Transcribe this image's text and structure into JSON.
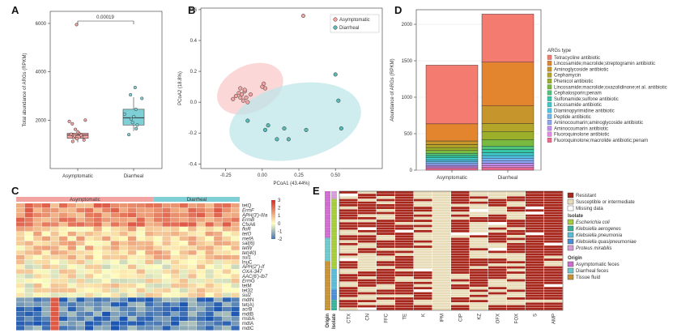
{
  "panels": {
    "A": {
      "label": "A",
      "chart_data": {
        "type": "box",
        "ylabel": "Total abundance of ARGs (RPKM)",
        "ylim": [
          0,
          6500
        ],
        "yticks": [
          2000,
          4000,
          6000
        ],
        "categories": [
          "Asymptomatic",
          "Diarrheal"
        ],
        "colors": [
          "#f4a3a3",
          "#7fd0d6"
        ],
        "boxes": [
          {
            "q1": 1250,
            "median": 1380,
            "q3": 1460,
            "whisker_low": 1080,
            "whisker_high": 1600,
            "points": [
              1120,
              1180,
              1230,
              1280,
              1310,
              1350,
              1380,
              1400,
              1420,
              1460,
              1500,
              1620,
              1850,
              1950,
              2000,
              5950
            ]
          },
          {
            "q1": 1800,
            "median": 2100,
            "q3": 2450,
            "whisker_low": 1550,
            "whisker_high": 2950,
            "points": [
              1400,
              1650,
              1800,
              1900,
              2050,
              2150,
              2250,
              2450,
              2900,
              3050,
              3350
            ]
          }
        ],
        "annotation": "0.00019"
      }
    },
    "B": {
      "label": "B",
      "chart_data": {
        "type": "scatter",
        "xlabel": "PCoA1 (43.44%)",
        "ylabel": "PCoA2 (18.8%)",
        "xlim": [
          -0.42,
          0.82
        ],
        "ylim": [
          -0.43,
          0.61
        ],
        "xticks": [
          -0.25,
          0.0,
          0.25,
          0.5
        ],
        "xticklabels": [
          "-0.25",
          "0.00",
          "0.25",
          "0.50"
        ],
        "yticks": [
          -0.4,
          -0.2,
          0.0,
          0.2,
          0.4,
          0.6
        ],
        "yticklabels": [
          "-0.4",
          "-0.2",
          "0.0",
          "0.2",
          "0.4",
          "0.6"
        ],
        "series": [
          {
            "name": "Asymptomatic",
            "color": "#f4a3a3",
            "ellipse_color": "#f9c9c9",
            "x": [
              -0.2,
              -0.18,
              -0.16,
              -0.15,
              -0.14,
              -0.13,
              -0.12,
              -0.11,
              -0.1,
              -0.12,
              -0.15,
              -0.08,
              0.0,
              0.01,
              0.02,
              0.28
            ],
            "y": [
              0.02,
              0.04,
              0.06,
              0.03,
              0.05,
              0.01,
              0.07,
              0.03,
              0.0,
              0.08,
              0.09,
              0.05,
              0.1,
              0.12,
              0.09,
              0.56
            ]
          },
          {
            "name": "Diarrheal",
            "color": "#59b9b5",
            "ellipse_color": "#bfe6ea",
            "x": [
              -0.1,
              0.02,
              0.04,
              0.1,
              0.15,
              0.18,
              0.3,
              0.5,
              0.52,
              0.54
            ],
            "y": [
              -0.12,
              -0.18,
              -0.15,
              -0.24,
              -0.17,
              -0.24,
              -0.18,
              0.18,
              0.01,
              -0.17
            ]
          }
        ],
        "legend_position": "top-right"
      }
    },
    "C": {
      "label": "C",
      "chart_data": {
        "type": "heatmap",
        "groups": [
          {
            "name": "Asymptomatic",
            "count": 16,
            "color": "#f4a3a3"
          },
          {
            "name": "Diarrheal",
            "count": 10,
            "color": "#7fd0d6"
          }
        ],
        "rows": [
          "tetQ",
          "ErmF",
          "APH(3')-IIIa",
          "ErmB",
          "CfxA6",
          "floR",
          "tetO",
          "mefA",
          "sat(6)",
          "tetW",
          "tet(40)",
          "sul1",
          "lnuC",
          "APH(2'')-If",
          "OXA-347",
          "AAC(6')-Ib7",
          "ErmG",
          "tetM",
          "tet32",
          "sul2",
          "mdtN",
          "tet(A)",
          "acrB",
          "mdtB",
          "msbA",
          "mdtA",
          "mdtC"
        ],
        "row_label_colors": [
          "#111",
          "#3fb4c6",
          "#3fb4c6",
          "#3fb4c6",
          "#111",
          "#3fb4c6",
          "#3fb4c6",
          "#3fb4c6",
          "#3fb4c6",
          "#3fb4c6",
          "#3fb4c6",
          "#3fb4c6",
          "#111",
          "#3fb4c6",
          "#3fb4c6",
          "#3fb4c6",
          "#3fb4c6",
          "#111",
          "#111",
          "#3fb4c6",
          "#111",
          "#111",
          "#111",
          "#111",
          "#111",
          "#111",
          "#111"
        ],
        "color_scale": {
          "min": -2,
          "max": 3,
          "colors": [
            "#4575b4",
            "#ffffbf",
            "#d73027"
          ]
        },
        "legend_ticks": [
          3,
          2,
          1,
          0,
          -1,
          -2
        ]
      }
    },
    "D": {
      "label": "D",
      "chart_data": {
        "type": "stacked-bar",
        "ylabel": "Abundance of ARGs (RPKM)",
        "ylim": [
          0,
          2200
        ],
        "yticks": [
          0,
          500,
          1000,
          1500,
          2000
        ],
        "categories": [
          "Asymptomatic",
          "Diarrheal"
        ],
        "legend_title": "ARGs type",
        "series": [
          {
            "name": "Fluoroquinolone;macrolide antibiotic;penam",
            "color": "#f06a8f",
            "values": [
              25,
              35
            ]
          },
          {
            "name": "Fluoroquinolone antibiotic",
            "color": "#e58be6",
            "values": [
              20,
              30
            ]
          },
          {
            "name": "Aminocoumarin antibiotic",
            "color": "#c08ff0",
            "values": [
              20,
              30
            ]
          },
          {
            "name": "Aminocoumarin;aminoglycoside antibiotic",
            "color": "#8fa5f5",
            "values": [
              25,
              35
            ]
          },
          {
            "name": "Peptide antibiotic",
            "color": "#74b6f2",
            "values": [
              25,
              35
            ]
          },
          {
            "name": "Diaminopyrimidine antibiotic",
            "color": "#4fc4e6",
            "values": [
              25,
              35
            ]
          },
          {
            "name": "Lincosamide antibiotic",
            "color": "#3fcac9",
            "values": [
              30,
              40
            ]
          },
          {
            "name": "Sulfonamide;sulfone antibiotic",
            "color": "#36c8a4",
            "values": [
              30,
              45
            ]
          },
          {
            "name": "Cephalosporin;penam",
            "color": "#4ec47a",
            "values": [
              30,
              45
            ]
          },
          {
            "name": "Lincosamide;macrolide;oxazolidinone;et al. antibiotic",
            "color": "#7ab93f",
            "values": [
              40,
              90
            ]
          },
          {
            "name": "Phenicol antibiotic",
            "color": "#9caf2b",
            "values": [
              40,
              110
            ]
          },
          {
            "name": "Cephamycin",
            "color": "#b3a42a",
            "values": [
              40,
              110
            ]
          },
          {
            "name": "Aminoglycoside antibiotic",
            "color": "#c6952c",
            "values": [
              50,
              240
            ]
          },
          {
            "name": "Lincosamide;macrolide;streptogramin antibiotic",
            "color": "#e3852f",
            "values": [
              235,
              600
            ]
          },
          {
            "name": "Tetracycline antibiotic",
            "color": "#f47b6f",
            "values": [
              805,
              660
            ]
          }
        ]
      }
    },
    "E": {
      "label": "E",
      "chart_data": {
        "type": "heatmap",
        "columns": [
          "CTX",
          "CN",
          "FFC",
          "TE",
          "K",
          "IPM",
          "CIP",
          "KZ",
          "OFX",
          "FOX",
          "S",
          "AMP"
        ],
        "side_labels": [
          "Origin",
          "Isolate"
        ],
        "legend": {
          "status": [
            {
              "label": "Resistant",
              "color": "#a8271d"
            },
            {
              "label": "Susceptible or intermediate",
              "color": "#e8dcb8"
            },
            {
              "label": "Missing data",
              "color": "#ffffff"
            }
          ],
          "isolate_title": "Isolate",
          "isolate": [
            {
              "label": "Escherichia coli",
              "color": "#a5cc3a"
            },
            {
              "label": "Klebsiella aerogenes",
              "color": "#38b39a"
            },
            {
              "label": "Klebsiella pneumonia",
              "color": "#58bcd9"
            },
            {
              "label": "Klebsiella quasipneumoniae",
              "color": "#4a8fd6"
            },
            {
              "label": "Proteus mirabilis",
              "color": "#d79bd7"
            }
          ],
          "origin_title": "Origin",
          "origin": [
            {
              "label": "Asymptomatic feces",
              "color": "#d06ccf"
            },
            {
              "label": "Diarrheal feces",
              "color": "#6cc8c9"
            },
            {
              "label": "Tissue fluid",
              "color": "#c69337"
            }
          ]
        }
      }
    }
  }
}
